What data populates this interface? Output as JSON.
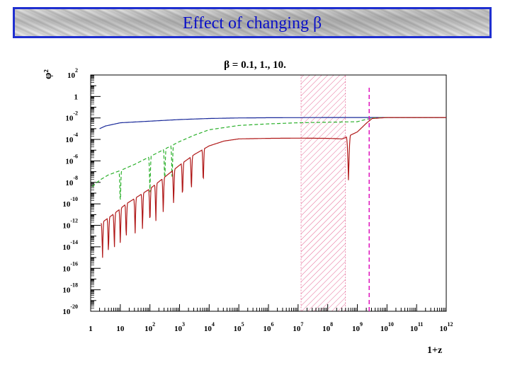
{
  "slide": {
    "title": "Effect of changing β"
  },
  "chart_data": {
    "type": "line",
    "title": "β = 0.1, 1., 10.",
    "xlabel": "1+z",
    "ylabel": "φ²",
    "xscale": "log",
    "yscale": "log",
    "xlim": [
      1,
      1000000000000.0
    ],
    "ylim": [
      1e-20,
      100.0
    ],
    "x_ticks": [
      {
        "exp": 0,
        "base": "1",
        "sup": ""
      },
      {
        "exp": 1,
        "base": "10",
        "sup": ""
      },
      {
        "exp": 2,
        "base": "10",
        "sup": "2"
      },
      {
        "exp": 3,
        "base": "10",
        "sup": "3"
      },
      {
        "exp": 4,
        "base": "10",
        "sup": "4"
      },
      {
        "exp": 5,
        "base": "10",
        "sup": "5"
      },
      {
        "exp": 6,
        "base": "10",
        "sup": "6"
      },
      {
        "exp": 7,
        "base": "10",
        "sup": "7"
      },
      {
        "exp": 8,
        "base": "10",
        "sup": "8"
      },
      {
        "exp": 9,
        "base": "10",
        "sup": "9"
      },
      {
        "exp": 10,
        "base": "10",
        "sup": "10"
      },
      {
        "exp": 11,
        "base": "10",
        "sup": "11"
      },
      {
        "exp": 12,
        "base": "10",
        "sup": "12"
      }
    ],
    "y_ticks": [
      {
        "exp": 2,
        "base": "10",
        "sup": "2"
      },
      {
        "exp": 0,
        "base": "1",
        "sup": ""
      },
      {
        "exp": -2,
        "base": "10",
        "sup": "-2"
      },
      {
        "exp": -4,
        "base": "10",
        "sup": "-4"
      },
      {
        "exp": -6,
        "base": "10",
        "sup": "-6"
      },
      {
        "exp": -8,
        "base": "10",
        "sup": "-8"
      },
      {
        "exp": -10,
        "base": "10",
        "sup": "-10"
      },
      {
        "exp": -12,
        "base": "10",
        "sup": "-12"
      },
      {
        "exp": -14,
        "base": "10",
        "sup": "-14"
      },
      {
        "exp": -16,
        "base": "10",
        "sup": "-16"
      },
      {
        "exp": -18,
        "base": "10",
        "sup": "-18"
      },
      {
        "exp": -20,
        "base": "10",
        "sup": "-20"
      }
    ],
    "shaded_band": {
      "x_log_range": [
        7.1,
        8.6
      ],
      "color": "#e0407a",
      "pattern": "hatched"
    },
    "vertical_line": {
      "x_log": 9.4,
      "color": "#e020c0",
      "style": "dashed"
    },
    "series": [
      {
        "color": "#1a2a9a",
        "style": "solid",
        "points_log": [
          [
            0.3,
            -3.0
          ],
          [
            0.5,
            -2.75
          ],
          [
            1,
            -2.45
          ],
          [
            2,
            -2.3
          ],
          [
            3,
            -2.15
          ],
          [
            4,
            -2.05
          ],
          [
            5,
            -2.0
          ],
          [
            6,
            -1.98
          ],
          [
            7,
            -1.97
          ],
          [
            8,
            -1.96
          ],
          [
            9,
            -1.96
          ],
          [
            10,
            -1.96
          ],
          [
            11,
            -1.96
          ],
          [
            12,
            -1.96
          ]
        ]
      },
      {
        "color": "#2ab02a",
        "style": "dashed",
        "points_log": [
          [
            0.05,
            -8.4
          ],
          [
            0.3,
            -7.8
          ],
          [
            0.6,
            -7.3
          ],
          [
            1,
            -6.9
          ],
          [
            1.5,
            -6.3
          ],
          [
            2,
            -5.6
          ],
          [
            2.5,
            -4.9
          ],
          [
            3,
            -4.2
          ],
          [
            3.5,
            -3.6
          ],
          [
            4,
            -3.1
          ],
          [
            5,
            -2.7
          ],
          [
            6,
            -2.55
          ],
          [
            7,
            -2.45
          ],
          [
            8,
            -2.4
          ],
          [
            9,
            -2.35
          ],
          [
            9.2,
            -2.2
          ],
          [
            9.5,
            -2.0
          ],
          [
            10,
            -1.96
          ],
          [
            12,
            -1.96
          ]
        ],
        "dips_log": [
          1.0,
          2.0,
          2.5,
          2.75
        ]
      },
      {
        "color": "#b01818",
        "style": "solid",
        "points_log": [
          [
            0.35,
            -11.8
          ],
          [
            0.8,
            -10.9
          ],
          [
            1.2,
            -10.0
          ],
          [
            1.6,
            -9.3
          ],
          [
            2.0,
            -8.6
          ],
          [
            2.5,
            -7.5
          ],
          [
            3.0,
            -6.4
          ],
          [
            3.5,
            -5.4
          ],
          [
            4.0,
            -4.6
          ],
          [
            4.5,
            -4.15
          ],
          [
            5,
            -3.95
          ],
          [
            6,
            -3.9
          ],
          [
            7,
            -3.88
          ],
          [
            8,
            -3.9
          ],
          [
            8.5,
            -3.95
          ],
          [
            9,
            -3.3
          ],
          [
            9.3,
            -2.5
          ],
          [
            9.5,
            -2.05
          ],
          [
            10,
            -1.96
          ],
          [
            12,
            -1.96
          ]
        ],
        "dips_log": [
          0.4,
          0.6,
          0.8,
          1.0,
          1.2,
          1.5,
          1.75,
          2.0,
          2.2,
          2.45,
          2.8,
          3.1,
          3.4,
          3.8,
          8.7
        ]
      }
    ]
  }
}
